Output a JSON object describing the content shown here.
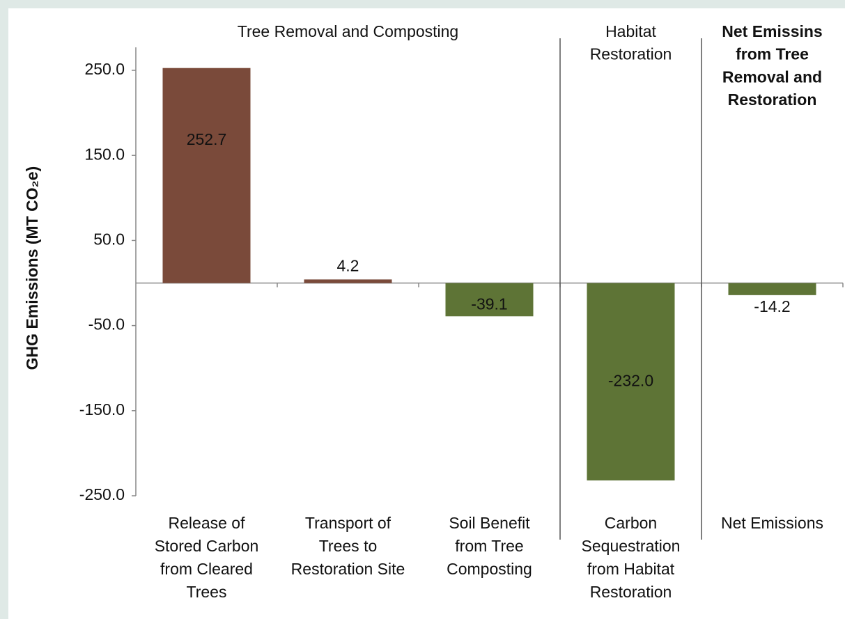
{
  "chart_data": {
    "type": "bar",
    "y_label": "GHG Emissions (MT CO₂e)",
    "groups": [
      {
        "lines": [
          "Tree Removal and Composting"
        ],
        "bold": false,
        "span": [
          0,
          2
        ]
      },
      {
        "lines": [
          "Habitat",
          "Restoration"
        ],
        "bold": false,
        "span": [
          3,
          3
        ]
      },
      {
        "lines": [
          "Net Emissins",
          "from Tree",
          "Removal and",
          "Restoration"
        ],
        "bold": true,
        "span": [
          4,
          4
        ]
      }
    ],
    "categories": [
      [
        "Release of",
        "Stored Carbon",
        "from Cleared",
        "Trees"
      ],
      [
        "Transport of",
        "Trees to",
        "Restoration Site"
      ],
      [
        "Soil Benefit",
        "from Tree",
        "Composting"
      ],
      [
        "Carbon",
        "Sequestration",
        "from Habitat",
        "Restoration"
      ],
      [
        "Net Emissions"
      ]
    ],
    "values": [
      252.7,
      4.2,
      -39.1,
      -232.0,
      -14.2
    ],
    "value_labels": [
      "252.7",
      "4.2",
      "-39.1",
      "-232.0",
      "-14.2"
    ],
    "colors": [
      "#7a4a3a",
      "#7a4a3a",
      "#5e7436",
      "#5e7436",
      "#5e7436"
    ],
    "ylim": [
      -250,
      277
    ],
    "yticks": [
      {
        "value": 250,
        "label": "250.0"
      },
      {
        "value": 150,
        "label": "150.0"
      },
      {
        "value": 50,
        "label": "50.0"
      },
      {
        "value": -50,
        "label": "-50.0"
      },
      {
        "value": -150,
        "label": "-150.0"
      },
      {
        "value": -250,
        "label": "-250.0"
      }
    ]
  }
}
